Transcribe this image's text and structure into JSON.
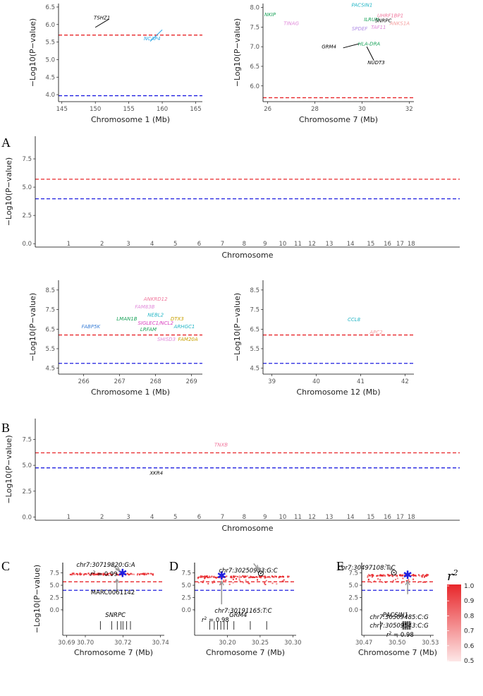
{
  "panel_letters": [
    "A",
    "B",
    "C",
    "D",
    "E"
  ],
  "colors": {
    "red_line": "#e8262a",
    "blue_line": "#1f1fe0",
    "ld_high": "#e8262a",
    "ld_low": "#fde7e7",
    "lead_snp": "#1f1fe0"
  },
  "chart_data": [
    {
      "id": "A_left",
      "type": "scatter",
      "xlabel": "Chromosome 1 (Mb)",
      "ylabel": "−Log10(P−value)",
      "xlim": [
        144.5,
        166
      ],
      "ylim": [
        3.8,
        6.6
      ],
      "xticks": [
        145,
        150,
        155,
        160,
        165
      ],
      "yticks": [
        4.0,
        4.5,
        5.0,
        5.5,
        6.0,
        6.5
      ],
      "hlines": [
        {
          "y": 5.7,
          "color": "red"
        },
        {
          "y": 3.97,
          "color": "blue"
        }
      ],
      "genes": [
        {
          "label": "TSHZ1",
          "x": 151.0,
          "y": 6.15,
          "color": "#000000",
          "seg": [
            [
              150.0,
              5.92
            ],
            [
              152.0,
              6.15
            ]
          ]
        },
        {
          "label": "NCAP4",
          "x": 158.5,
          "y": 5.55,
          "color": "#29a6e6",
          "seg": [
            [
              158.2,
              5.52
            ],
            [
              160.0,
              5.85
            ]
          ]
        }
      ]
    },
    {
      "id": "A_right",
      "type": "scatter",
      "xlabel": "Chromosome 7 (Mb)",
      "ylabel": "−Log10(P−value)",
      "xlim": [
        25.8,
        32.2
      ],
      "ylim": [
        5.6,
        8.1
      ],
      "xticks": [
        26,
        28,
        30,
        32
      ],
      "yticks": [
        6.0,
        6.5,
        7.0,
        7.5,
        8.0
      ],
      "hlines": [
        {
          "y": 5.7,
          "color": "red"
        }
      ],
      "genes": [
        {
          "label": "NKIP",
          "x": 26.1,
          "y": 7.78,
          "color": "#1aa35a"
        },
        {
          "label": "TINAG",
          "x": 27.0,
          "y": 7.55,
          "color": "#e08ad9"
        },
        {
          "label": "PACSIN1",
          "x": 30.0,
          "y": 8.02,
          "color": "#22b5c5"
        },
        {
          "label": "UHRF1BP1",
          "x": 31.2,
          "y": 7.75,
          "color": "#f0779d"
        },
        {
          "label": "ILRUN",
          "x": 30.4,
          "y": 7.65,
          "color": "#1aa35a"
        },
        {
          "label": "SNRPC",
          "x": 30.9,
          "y": 7.62,
          "color": "#000000"
        },
        {
          "label": "ANKS1A",
          "x": 31.6,
          "y": 7.55,
          "color": "#f5a0a0"
        },
        {
          "label": "SPDEF",
          "x": 29.9,
          "y": 7.42,
          "color": "#b08de6"
        },
        {
          "label": "TAF11",
          "x": 30.7,
          "y": 7.45,
          "color": "#e08ad9"
        },
        {
          "label": "GRM4",
          "x": 28.6,
          "y": 6.96,
          "color": "#000000",
          "seg": [
            [
              29.2,
              6.97
            ],
            [
              29.9,
              7.08
            ]
          ]
        },
        {
          "label": "HLA-DRA",
          "x": 30.3,
          "y": 7.03,
          "color": "#1aa35a"
        },
        {
          "label": "NUDT3",
          "x": 30.6,
          "y": 6.55,
          "color": "#000000",
          "seg": [
            [
              30.2,
              7.0
            ],
            [
              30.5,
              6.65
            ]
          ]
        }
      ]
    },
    {
      "id": "A_manhattan",
      "type": "scatter",
      "xlabel": "Chromosome",
      "ylabel": "−Log10(P−value)",
      "ylim": [
        -0.3,
        9.5
      ],
      "yticks": [
        0.0,
        2.5,
        5.0,
        7.5
      ],
      "chromosomes": [
        "1",
        "2",
        "3",
        "4",
        "5",
        "6",
        "7",
        "8",
        "9",
        "10",
        "11",
        "12",
        "13",
        "14",
        "15",
        "16",
        "17",
        "18"
      ],
      "hlines": [
        {
          "y": 5.7,
          "color": "red"
        },
        {
          "y": 3.97,
          "color": "blue"
        }
      ],
      "genes": []
    },
    {
      "id": "B_left",
      "type": "scatter",
      "xlabel": "Chromosome 1 (Mb)",
      "ylabel": "−Log10(P−value)",
      "xlim": [
        265.3,
        269.3
      ],
      "ylim": [
        4.2,
        9.0
      ],
      "xticks": [
        266,
        267,
        268,
        269
      ],
      "yticks": [
        4.5,
        5.5,
        6.5,
        7.5,
        8.5
      ],
      "hlines": [
        {
          "y": 6.2,
          "color": "red"
        },
        {
          "y": 4.75,
          "color": "blue"
        }
      ],
      "genes": [
        {
          "label": "ANKRD12",
          "x": 268.0,
          "y": 7.95,
          "color": "#f0779d"
        },
        {
          "label": "FAM83B",
          "x": 267.7,
          "y": 7.55,
          "color": "#e08ad9"
        },
        {
          "label": "NEBL2",
          "x": 268.0,
          "y": 7.15,
          "color": "#22b5c5"
        },
        {
          "label": "LMAN1B",
          "x": 267.2,
          "y": 6.95,
          "color": "#1aa35a"
        },
        {
          "label": "DTX3",
          "x": 268.6,
          "y": 6.95,
          "color": "#c8a000"
        },
        {
          "label": "SIGLEC1/NCL2",
          "x": 268.0,
          "y": 6.72,
          "color": "#d93fbf"
        },
        {
          "label": "FABP5K",
          "x": 266.2,
          "y": 6.55,
          "color": "#3b7fd6"
        },
        {
          "label": "ARHGC1",
          "x": 268.8,
          "y": 6.55,
          "color": "#22b5c5"
        },
        {
          "label": "LRFAM",
          "x": 267.8,
          "y": 6.4,
          "color": "#1aa35a"
        },
        {
          "label": "SHISD3",
          "x": 268.3,
          "y": 5.9,
          "color": "#e08ad9"
        },
        {
          "label": "FAM20A",
          "x": 268.9,
          "y": 5.9,
          "color": "#c8a000"
        }
      ]
    },
    {
      "id": "B_right",
      "type": "scatter",
      "xlabel": "Chromosome 12 (Mb)",
      "ylabel": "−Log10(P−value)",
      "xlim": [
        38.8,
        42.2
      ],
      "ylim": [
        4.2,
        9.0
      ],
      "xticks": [
        39,
        40,
        41,
        42
      ],
      "yticks": [
        4.5,
        5.5,
        6.5,
        7.5,
        8.5
      ],
      "hlines": [
        {
          "y": 6.2,
          "color": "red"
        },
        {
          "y": 4.75,
          "color": "blue"
        }
      ],
      "genes": [
        {
          "label": "CCL8",
          "x": 40.85,
          "y": 6.9,
          "color": "#22b5c5"
        },
        {
          "label": "APC2",
          "x": 41.35,
          "y": 6.25,
          "color": "#f5a0a0"
        }
      ]
    },
    {
      "id": "B_manhattan",
      "type": "scatter",
      "xlabel": "Chromosome",
      "ylabel": "−Log10(P−value)",
      "ylim": [
        -0.3,
        9.5
      ],
      "yticks": [
        0.0,
        2.5,
        5.0,
        7.5
      ],
      "chromosomes": [
        "1",
        "2",
        "3",
        "4",
        "5",
        "6",
        "7",
        "8",
        "9",
        "10",
        "11",
        "12",
        "13",
        "14",
        "15",
        "16",
        "17",
        "18"
      ],
      "hlines": [
        {
          "y": 6.2,
          "color": "red"
        },
        {
          "y": 4.75,
          "color": "blue"
        }
      ],
      "genes": [
        {
          "label": "TNXB",
          "chrom": 7.0,
          "y": 6.8,
          "color": "#f0779d"
        },
        {
          "label": "XKR4",
          "chrom": 4.0,
          "y": 4.1,
          "color": "#000000"
        }
      ]
    },
    {
      "id": "C",
      "type": "scatter",
      "xlabel": "Chromosome 7 (Mb)",
      "ylabel": "−Log10(P−value)",
      "xlim": [
        30.688,
        30.742
      ],
      "ylim": [
        -0.3,
        9.6
      ],
      "xticks": [
        30.69,
        30.7,
        30.72,
        30.74
      ],
      "yticks": [
        0.0,
        2.5,
        5.0,
        7.5
      ],
      "hlines": [
        {
          "y": 5.7,
          "color": "red"
        },
        {
          "y": 3.97,
          "color": "blue"
        }
      ],
      "lead_snp": {
        "id": "chr7:30719820:G:A",
        "x": 30.7198,
        "y": 7.35
      },
      "lead_r2": 0.99,
      "marker_note": "MARC0061142",
      "gene_name": "SNRPC",
      "snp_cluster": {
        "x_range": [
          30.692,
          30.737
        ],
        "y": 7.25
      },
      "gene_ticks": [
        30.708,
        30.714,
        30.717,
        30.719,
        30.72,
        30.722,
        30.724
      ]
    },
    {
      "id": "D",
      "type": "scatter",
      "xlabel": "Chromosome 7 (Mb)",
      "ylabel": "−Log10(P−value)",
      "xlim": [
        30.15,
        30.305
      ],
      "ylim": [
        -0.3,
        9.6
      ],
      "xticks": [
        30.2,
        30.25,
        30.3
      ],
      "yticks": [
        0.0,
        2.5,
        5.0,
        7.5
      ],
      "hlines": [
        {
          "y": 5.7,
          "color": "red"
        },
        {
          "y": 3.97,
          "color": "blue"
        }
      ],
      "lead_snp": {
        "id": "chr7:30191165:T:C",
        "x": 30.1912,
        "y": 6.85
      },
      "lead_r2": 0.98,
      "circled_snp": {
        "id": "chr7:30250983:G:C",
        "x": 30.251,
        "y": 7.4
      },
      "gene_name": "GRM4",
      "gene_ticks": [
        30.173,
        30.18,
        30.185,
        30.19,
        30.195,
        30.2,
        30.21,
        30.235,
        30.26
      ],
      "snp_cluster": {
        "x_range": [
          30.155,
          30.295
        ],
        "y": 6.7
      }
    },
    {
      "id": "E",
      "type": "scatter",
      "xlabel": "Chromosome 7 (Mb)",
      "ylabel": "−Log10(P−value)",
      "xlim": [
        30.468,
        30.533
      ],
      "ylim": [
        -0.3,
        9.6
      ],
      "xticks": [
        30.47,
        30.5,
        30.53
      ],
      "yticks": [
        0.0,
        2.5,
        5.0,
        7.5
      ],
      "hlines": [
        {
          "y": 5.7,
          "color": "red"
        },
        {
          "y": 3.97,
          "color": "blue"
        }
      ],
      "circled_snp": {
        "id": "chr7:30497108:T:C",
        "x": 30.4971,
        "y": 7.55
      },
      "lead_snp": {
        "id": "chr7:30509485:C:G",
        "x": 30.5095,
        "y": 7.05
      },
      "second_snp_id": "chr7:30509543:C:G",
      "lead_r2": 0.98,
      "gene_name": "PACSIN1",
      "gene_ticks": [
        30.485,
        30.505,
        30.506,
        30.507,
        30.508,
        30.509,
        30.51,
        30.511,
        30.512
      ],
      "snp_cluster": {
        "x_range": [
          30.472,
          30.528
        ],
        "y": 7.0
      }
    }
  ],
  "legend": {
    "title": "r2",
    "ticks": [
      "1.0",
      "0.9",
      "0.8",
      "0.7",
      "0.6",
      "0.5"
    ]
  }
}
